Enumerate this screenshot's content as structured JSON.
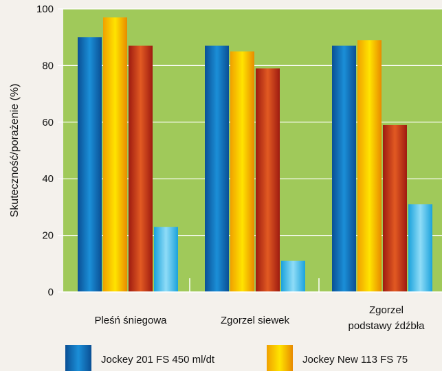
{
  "chart_data": {
    "type": "bar",
    "title": "",
    "xlabel": "",
    "ylabel": "Skuteczność/porażenie (%)",
    "ylim": [
      0,
      100
    ],
    "yticks": [
      0,
      20,
      40,
      60,
      80,
      100
    ],
    "grid": true,
    "legend_position": "bottom",
    "categories": [
      [
        "Pleśń śniegowa"
      ],
      [
        "Zgorzel siewek"
      ],
      [
        "Zgorzel",
        "podstawy źdźbła"
      ]
    ],
    "series": [
      {
        "name": "Jockey 201 FS 450 ml/dt",
        "values": [
          90,
          87,
          87
        ],
        "gradient": [
          "#0a4f94",
          "#1b8fd8",
          "#0a4f94"
        ]
      },
      {
        "name": "Jockey New 113 FS 75",
        "values": [
          97,
          85,
          89
        ],
        "gradient": [
          "#f0a000",
          "#ffe400",
          "#e88a00"
        ]
      },
      {
        "name": "",
        "values": [
          87,
          79,
          59
        ],
        "gradient": [
          "#9e1b10",
          "#e25a22",
          "#9e1b10"
        ]
      },
      {
        "name": "",
        "values": [
          23,
          11,
          31
        ],
        "gradient": [
          "#1aa2dc",
          "#8fdcf7",
          "#1aa2dc"
        ]
      }
    ],
    "plot_background": "#a0c95a"
  }
}
